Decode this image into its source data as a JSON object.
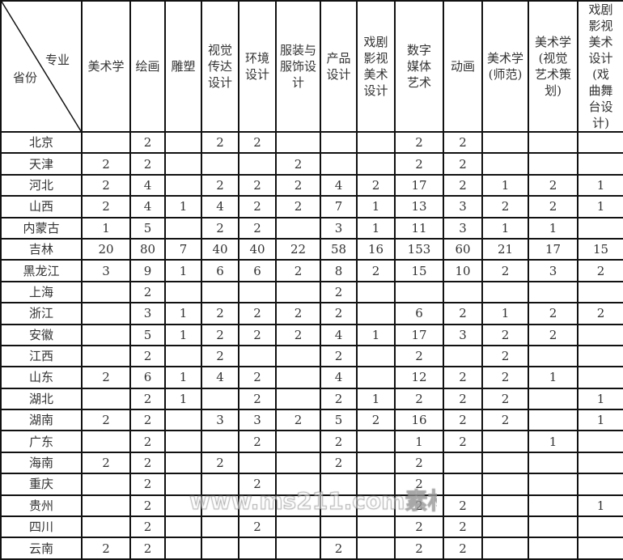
{
  "header": {
    "corner_major": "专业",
    "corner_province": "省份",
    "columns": [
      "美术学",
      "绘画",
      "雕塑",
      "视觉传达设计",
      "环境设计",
      "服装与服饰设计",
      "产品设计",
      "戏剧影视美术设计",
      "数字媒体艺术",
      "动画",
      "美术学(师范)",
      "美术学(视觉艺术策划)",
      "戏剧影视美术设计(戏曲舞台设计)"
    ]
  },
  "rows": [
    {
      "province": "北京",
      "values": [
        "",
        "2",
        "",
        "2",
        "2",
        "",
        "",
        "",
        "2",
        "2",
        "",
        "",
        ""
      ]
    },
    {
      "province": "天津",
      "values": [
        "2",
        "2",
        "",
        "",
        "",
        "2",
        "",
        "",
        "2",
        "2",
        "",
        "",
        ""
      ]
    },
    {
      "province": "河北",
      "values": [
        "2",
        "4",
        "",
        "2",
        "2",
        "2",
        "4",
        "2",
        "17",
        "2",
        "1",
        "2",
        "1"
      ]
    },
    {
      "province": "山西",
      "values": [
        "2",
        "4",
        "1",
        "4",
        "2",
        "2",
        "7",
        "1",
        "13",
        "3",
        "2",
        "2",
        "1"
      ]
    },
    {
      "province": "内蒙古",
      "values": [
        "1",
        "5",
        "",
        "2",
        "2",
        "",
        "3",
        "1",
        "11",
        "3",
        "1",
        "1",
        ""
      ]
    },
    {
      "province": "吉林",
      "values": [
        "20",
        "80",
        "7",
        "40",
        "40",
        "22",
        "58",
        "16",
        "153",
        "60",
        "21",
        "17",
        "15"
      ]
    },
    {
      "province": "黑龙江",
      "values": [
        "3",
        "9",
        "1",
        "6",
        "6",
        "2",
        "8",
        "2",
        "15",
        "10",
        "2",
        "3",
        "2"
      ]
    },
    {
      "province": "上海",
      "values": [
        "",
        "2",
        "",
        "",
        "",
        "",
        "2",
        "",
        "",
        "",
        "",
        "",
        ""
      ]
    },
    {
      "province": "浙江",
      "values": [
        "",
        "3",
        "1",
        "2",
        "2",
        "2",
        "2",
        "",
        "6",
        "2",
        "1",
        "2",
        "2"
      ]
    },
    {
      "province": "安徽",
      "values": [
        "",
        "5",
        "1",
        "2",
        "2",
        "2",
        "4",
        "1",
        "17",
        "3",
        "2",
        "2",
        ""
      ]
    },
    {
      "province": "江西",
      "values": [
        "",
        "2",
        "",
        "2",
        "",
        "",
        "2",
        "",
        "2",
        "",
        "2",
        "",
        ""
      ]
    },
    {
      "province": "山东",
      "values": [
        "2",
        "6",
        "1",
        "4",
        "2",
        "",
        "4",
        "",
        "12",
        "2",
        "2",
        "1",
        ""
      ]
    },
    {
      "province": "湖北",
      "values": [
        "",
        "2",
        "1",
        "",
        "2",
        "",
        "2",
        "1",
        "2",
        "2",
        "2",
        "",
        "1"
      ]
    },
    {
      "province": "湖南",
      "values": [
        "2",
        "2",
        "",
        "3",
        "3",
        "2",
        "5",
        "2",
        "16",
        "2",
        "2",
        "",
        "1"
      ]
    },
    {
      "province": "广东",
      "values": [
        "",
        "2",
        "",
        "",
        "2",
        "",
        "2",
        "",
        "1",
        "2",
        "",
        "1",
        ""
      ]
    },
    {
      "province": "海南",
      "values": [
        "2",
        "2",
        "",
        "2",
        "",
        "",
        "2",
        "",
        "2",
        "",
        "",
        "",
        ""
      ]
    },
    {
      "province": "重庆",
      "values": [
        "",
        "2",
        "",
        "",
        "2",
        "",
        "",
        "",
        "2",
        "",
        "",
        "",
        ""
      ]
    },
    {
      "province": "贵州",
      "values": [
        "",
        "2",
        "",
        "",
        "",
        "",
        "",
        "",
        "2",
        "2",
        "",
        "",
        "1"
      ]
    },
    {
      "province": "四川",
      "values": [
        "",
        "2",
        "",
        "",
        "2",
        "",
        "",
        "",
        "2",
        "2",
        "",
        "",
        ""
      ]
    },
    {
      "province": "云南",
      "values": [
        "2",
        "2",
        "",
        "",
        "",
        "",
        "2",
        "",
        "2",
        "2",
        "",
        "",
        ""
      ]
    }
  ],
  "watermark": "www.ms211.com素材"
}
